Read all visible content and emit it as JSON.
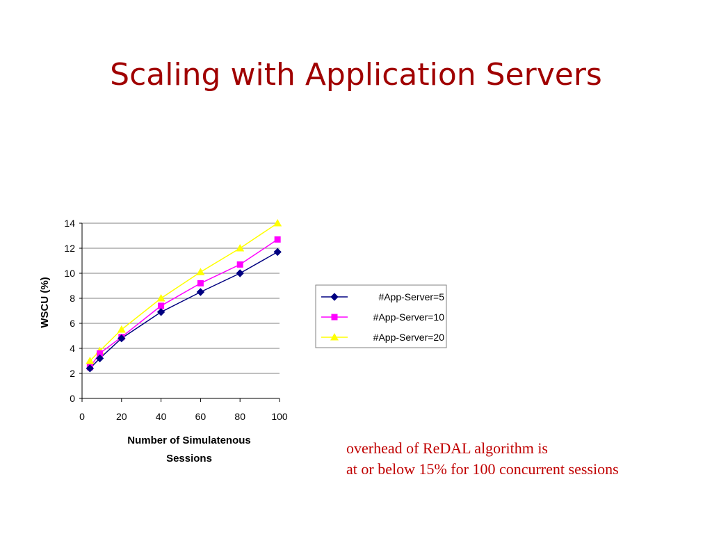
{
  "slide": {
    "title": "Scaling with Application Servers",
    "caption_line1": "overhead of ReDAL algorithm is",
    "caption_line2": "at or below 15% for 100 concurrent sessions"
  },
  "chart_data": {
    "type": "line",
    "title": "",
    "xlabel": "Number of Simulatenous Sessions",
    "xlabel_lines": [
      "Number of Simulatenous",
      "Sessions"
    ],
    "ylabel": "WSCU (%)",
    "xlim": [
      0,
      100
    ],
    "ylim": [
      0,
      14
    ],
    "xticks": [
      0,
      20,
      40,
      60,
      80,
      100
    ],
    "yticks": [
      0,
      2,
      4,
      6,
      8,
      10,
      12,
      14
    ],
    "grid": "horizontal",
    "legend_position": "right",
    "series": [
      {
        "name": "#App-Server=5",
        "color": "#000080",
        "marker": "diamond",
        "x": [
          4,
          9,
          20,
          40,
          60,
          80,
          99
        ],
        "y": [
          2.4,
          3.2,
          4.8,
          6.9,
          8.5,
          10.0,
          11.7
        ]
      },
      {
        "name": "#App-Server=10",
        "color": "#ff00ff",
        "marker": "square",
        "x": [
          4,
          9,
          20,
          40,
          60,
          80,
          99
        ],
        "y": [
          2.5,
          3.6,
          4.9,
          7.4,
          9.2,
          10.7,
          12.7
        ]
      },
      {
        "name": "#App-Server=20",
        "color": "#ffff00",
        "marker": "triangle",
        "x": [
          4,
          9,
          20,
          40,
          60,
          80,
          99
        ],
        "y": [
          3.0,
          3.8,
          5.5,
          8.0,
          10.1,
          12.0,
          14.0
        ]
      }
    ]
  }
}
